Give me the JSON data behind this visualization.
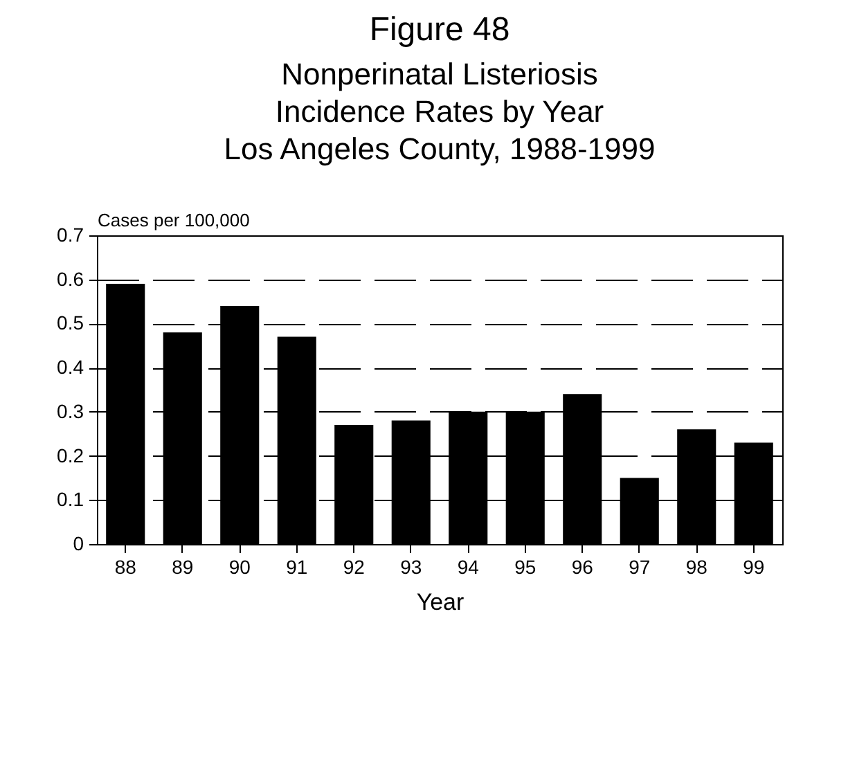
{
  "chart_data": {
    "type": "bar",
    "title": "Figure 48",
    "subtitle": "Nonperinatal Listeriosis\nIncidence Rates by Year\nLos Angeles County, 1988-1999",
    "xlabel": "Year",
    "ylabel": "Cases per 100,000",
    "categories": [
      "88",
      "89",
      "90",
      "91",
      "92",
      "93",
      "94",
      "95",
      "96",
      "97",
      "98",
      "99"
    ],
    "values": [
      0.59,
      0.48,
      0.54,
      0.47,
      0.27,
      0.28,
      0.3,
      0.3,
      0.34,
      0.15,
      0.26,
      0.23
    ],
    "color": "#000000",
    "ylim": [
      0,
      0.7
    ],
    "yticks": [
      0,
      0.1,
      0.2,
      0.3,
      0.4,
      0.5,
      0.6,
      0.7
    ],
    "grid": "y"
  }
}
